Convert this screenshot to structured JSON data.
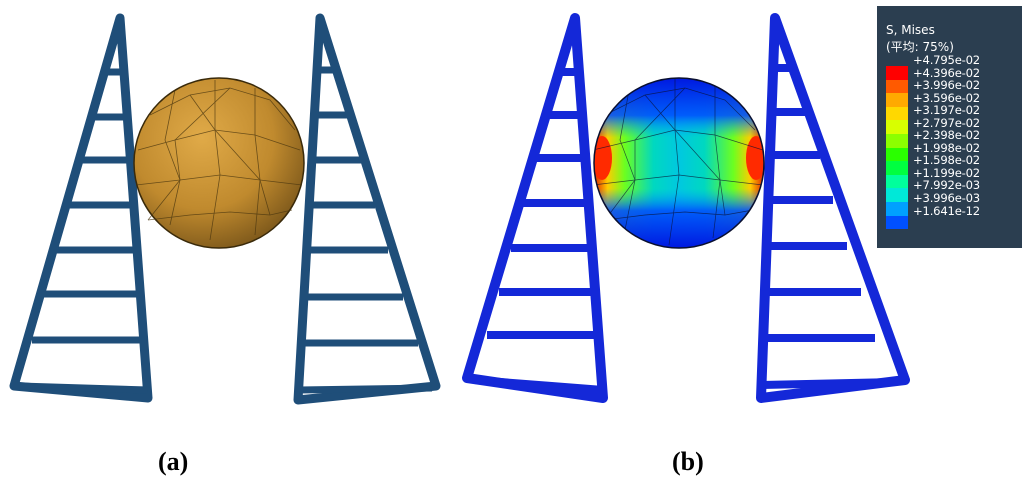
{
  "captions": {
    "a": "(a)",
    "b": "(b)"
  },
  "legend": {
    "title": "S, Mises",
    "subtitle": "(平均: 75%)",
    "values": [
      "+4.795e-02",
      "+4.396e-02",
      "+3.996e-02",
      "+3.596e-02",
      "+3.197e-02",
      "+2.797e-02",
      "+2.398e-02",
      "+1.998e-02",
      "+1.598e-02",
      "+1.199e-02",
      "+7.992e-03",
      "+3.996e-03",
      "+1.641e-12"
    ],
    "colors": [
      "#ff0000",
      "#ff5a00",
      "#ffaa00",
      "#ffd800",
      "#d8ff00",
      "#8cff00",
      "#2aff00",
      "#00ff40",
      "#00ff9c",
      "#00e8d8",
      "#00a0ff",
      "#0050ff",
      "#0000ff"
    ]
  },
  "colors": {
    "frame_a": "#1f4e79",
    "sphere_a": "#c8922e",
    "frame_b": "#1428d8",
    "mesh": "#10203a"
  }
}
